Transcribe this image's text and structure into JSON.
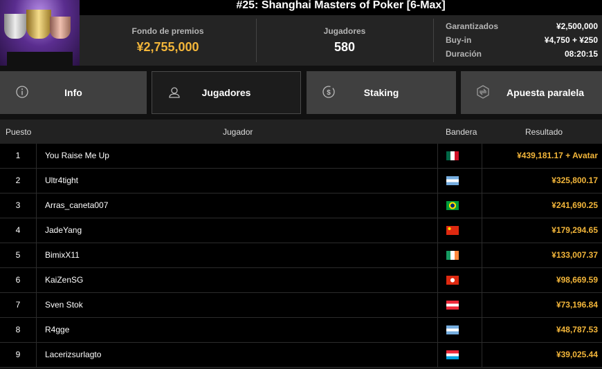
{
  "tournament": {
    "title": "#25: Shanghai Masters of Poker [6-Max]"
  },
  "stats": {
    "prize_pool_label": "Fondo de premios",
    "prize_pool": "¥2,755,000",
    "players_label": "Jugadores",
    "players": "580",
    "guaranteed_label": "Garantizados",
    "guaranteed": "¥2,500,000",
    "buyin_label": "Buy-in",
    "buyin": "¥4,750 + ¥250",
    "duration_label": "Duración",
    "duration": "08:20:15"
  },
  "tabs": [
    {
      "label": "Info",
      "icon": "info-icon"
    },
    {
      "label": "Jugadores",
      "icon": "user-icon",
      "active": true
    },
    {
      "label": "Staking",
      "icon": "dollar-coin-icon"
    },
    {
      "label": "Apuesta paralela",
      "icon": "side-bet-icon"
    }
  ],
  "table": {
    "headers": [
      "Puesto",
      "Jugador",
      "Bandera",
      "Resultado"
    ],
    "rows": [
      {
        "pos": "1",
        "name": "You Raise Me Up",
        "flag": "mx",
        "result": "¥439,181.17 + Avatar"
      },
      {
        "pos": "2",
        "name": "Ultr4tight",
        "flag": "ar",
        "result": "¥325,800.17"
      },
      {
        "pos": "3",
        "name": "Arras_caneta007",
        "flag": "br",
        "result": "¥241,690.25"
      },
      {
        "pos": "4",
        "name": "JadeYang",
        "flag": "cn",
        "result": "¥179,294.65"
      },
      {
        "pos": "5",
        "name": "BimixX11",
        "flag": "ie",
        "result": "¥133,007.37"
      },
      {
        "pos": "6",
        "name": "KaiZenSG",
        "flag": "hk",
        "result": "¥98,669.59"
      },
      {
        "pos": "7",
        "name": "Sven Stok",
        "flag": "at",
        "result": "¥73,196.84"
      },
      {
        "pos": "8",
        "name": "R4gge",
        "flag": "ar",
        "result": "¥48,787.53"
      },
      {
        "pos": "9",
        "name": "Lacerizsurlagto",
        "flag": "lu",
        "result": "¥39,025.44"
      }
    ]
  },
  "colors": {
    "accent": "#f3b63a"
  }
}
